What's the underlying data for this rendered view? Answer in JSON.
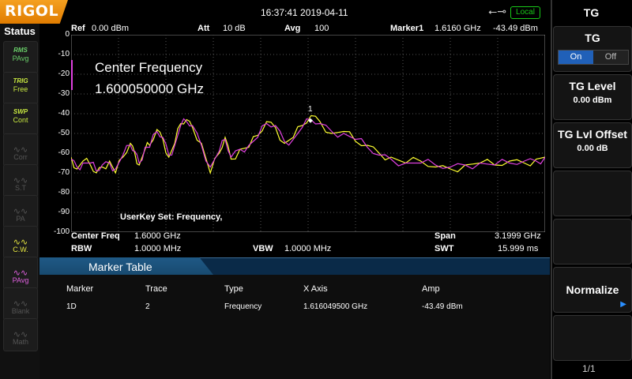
{
  "brand": "RIGOL",
  "datetime": "16:37:41 2019-04-11",
  "local_badge": "Local",
  "status_label": "Status",
  "status_buttons": [
    {
      "sup": "RMS",
      "label": "PAvg",
      "icon": "wave-rms-icon",
      "color": "#6ad06a"
    },
    {
      "sup": "TRIG",
      "label": "Free",
      "icon": "trig-icon",
      "color": "#c8e840"
    },
    {
      "sup": "SWP",
      "label": "Cont",
      "icon": "sweep-icon",
      "color": "#c8e840"
    },
    {
      "sup": "",
      "label": "Corr",
      "icon": "corr-icon",
      "color": "#555"
    },
    {
      "sup": "",
      "label": "S.T",
      "icon": "st-icon",
      "color": "#555"
    },
    {
      "sup": "",
      "label": "PA",
      "icon": "pa-icon",
      "color": "#555"
    },
    {
      "sup": "",
      "label": "C.W.",
      "icon": "cw-icon",
      "color": "#e8e840"
    },
    {
      "sup": "",
      "label": "PAvg",
      "icon": "pavg-icon",
      "color": "#e060e0"
    },
    {
      "sup": "",
      "label": "Blank",
      "icon": "blank-icon",
      "color": "#555"
    },
    {
      "sup": "",
      "label": "Math",
      "icon": "math-icon",
      "color": "#555"
    }
  ],
  "header": {
    "ref_label": "Ref",
    "ref_value": "0.00 dBm",
    "att_label": "Att",
    "att_value": "10 dB",
    "avg_label": "Avg",
    "avg_value": "100",
    "marker_label": "Marker1",
    "marker_freq": "1.6160 GHz",
    "marker_amp": "-43.49 dBm"
  },
  "overlay": {
    "line1": "Center Frequency",
    "line2": "1.600050000 GHz",
    "userkey": "UserKey Set:   Frequency,"
  },
  "marker_flag": "1",
  "params": {
    "center_label": "Center Freq",
    "center_value": "1.6000 GHz",
    "rbw_label": "RBW",
    "rbw_value": "1.0000 MHz",
    "vbw_label": "VBW",
    "vbw_value": "1.0000 MHz",
    "span_label": "Span",
    "span_value": "3.1999 GHz",
    "swt_label": "SWT",
    "swt_value": "15.999 ms"
  },
  "marker_table": {
    "title": "Marker Table",
    "columns": [
      "Marker",
      "Trace",
      "Type",
      "X Axis",
      "Amp"
    ],
    "rows": [
      [
        "1D",
        "2",
        "Frequency",
        "1.616049500 GHz",
        "-43.49 dBm"
      ]
    ]
  },
  "right_panel": {
    "title": "TG",
    "tg_label": "TG",
    "on": "On",
    "off": "Off",
    "level_label": "TG Level",
    "level_value": "0.00 dBm",
    "offset_label": "TG Lvl Offset",
    "offset_value": "0.00 dB",
    "normalize": "Normalize",
    "page": "1/1"
  },
  "chart_data": {
    "type": "line",
    "yticks": [
      "0",
      "-10",
      "-20",
      "-30",
      "-40",
      "-50",
      "-60",
      "-70",
      "-80",
      "-90",
      "-100"
    ],
    "ylim": [
      -100,
      0
    ],
    "x_unit": "GHz",
    "xlim": [
      0.0001,
      3.2
    ],
    "series": [
      {
        "color": "#ffff30",
        "x": [
          0.0,
          0.04,
          0.08,
          0.13,
          0.17,
          0.21,
          0.26,
          0.3,
          0.35,
          0.4,
          0.43,
          0.46,
          0.5,
          0.53,
          0.58,
          0.62,
          0.66,
          0.7,
          0.74,
          0.78,
          0.82,
          0.88,
          0.94,
          1.0,
          1.04,
          1.08,
          1.14,
          1.2,
          1.26,
          1.32,
          1.38,
          1.44,
          1.5,
          1.56,
          1.62,
          1.68,
          1.76,
          1.84,
          1.92,
          2.0,
          2.08,
          2.16,
          2.26,
          2.36,
          2.46,
          2.56,
          2.66,
          2.76,
          2.86,
          2.96,
          3.06,
          3.14,
          3.2
        ],
        "y": [
          -62,
          -68,
          -64,
          -66,
          -70,
          -67,
          -64,
          -70,
          -62,
          -55,
          -60,
          -66,
          -58,
          -56,
          -48,
          -53,
          -62,
          -55,
          -45,
          -43,
          -47,
          -55,
          -70,
          -60,
          -52,
          -63,
          -58,
          -57,
          -51,
          -44,
          -47,
          -55,
          -52,
          -46,
          -41,
          -44,
          -50,
          -49,
          -54,
          -56,
          -60,
          -62,
          -65,
          -64,
          -67,
          -68,
          -66,
          -65,
          -66,
          -64,
          -65,
          -63,
          -62
        ]
      },
      {
        "color": "#e040e0",
        "x": [
          0.0,
          0.04,
          0.08,
          0.13,
          0.17,
          0.21,
          0.26,
          0.3,
          0.35,
          0.4,
          0.43,
          0.46,
          0.5,
          0.53,
          0.58,
          0.62,
          0.66,
          0.7,
          0.74,
          0.78,
          0.82,
          0.88,
          0.94,
          1.0,
          1.04,
          1.08,
          1.14,
          1.2,
          1.26,
          1.32,
          1.38,
          1.44,
          1.5,
          1.56,
          1.62,
          1.68,
          1.76,
          1.84,
          1.92,
          2.0,
          2.08,
          2.16,
          2.26,
          2.36,
          2.46,
          2.56,
          2.66,
          2.76,
          2.86,
          2.96,
          3.06,
          3.14,
          3.2
        ],
        "y": [
          -63,
          -67,
          -65,
          -65,
          -69,
          -66,
          -65,
          -68,
          -61,
          -56,
          -59,
          -65,
          -57,
          -57,
          -49,
          -52,
          -61,
          -56,
          -46,
          -44,
          -46,
          -56,
          -67,
          -59,
          -53,
          -62,
          -58,
          -56,
          -52,
          -45,
          -46,
          -54,
          -53,
          -47,
          -43,
          -45,
          -49,
          -50,
          -53,
          -57,
          -61,
          -63,
          -65,
          -65,
          -66,
          -67,
          -66,
          -65,
          -66,
          -65,
          -64,
          -64,
          -62
        ]
      }
    ]
  }
}
